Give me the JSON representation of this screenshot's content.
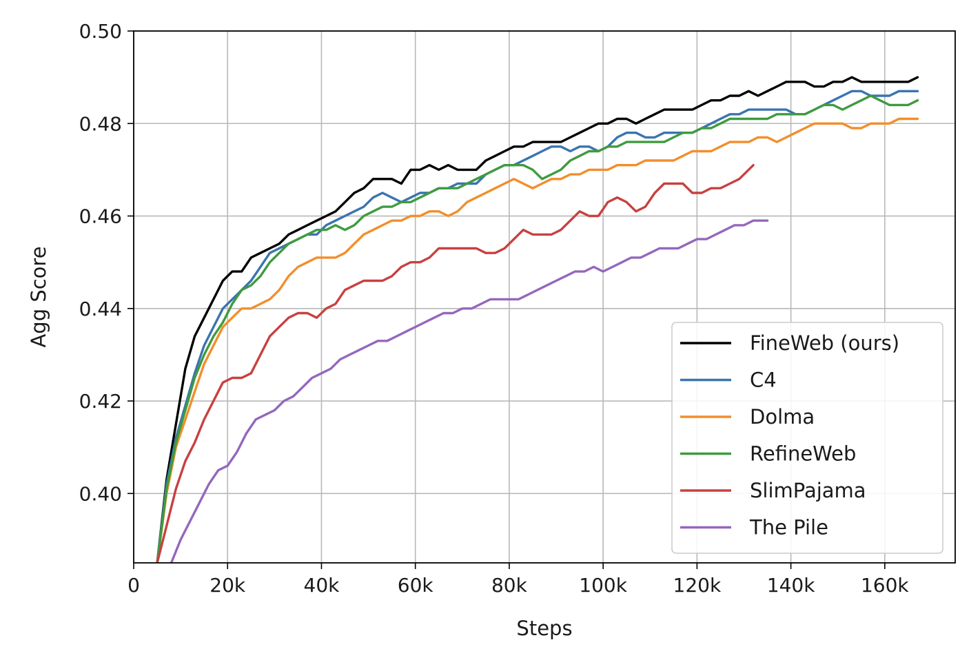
{
  "chart_data": {
    "type": "line",
    "title": "",
    "xlabel": "Steps",
    "ylabel": "Agg Score",
    "xlim": [
      0,
      175000
    ],
    "ylim": [
      0.385,
      0.5
    ],
    "xticks": [
      0,
      20000,
      40000,
      60000,
      80000,
      100000,
      120000,
      140000,
      160000
    ],
    "xtick_labels": [
      "0",
      "20k",
      "40k",
      "60k",
      "80k",
      "100k",
      "120k",
      "140k",
      "160k"
    ],
    "yticks": [
      0.4,
      0.42,
      0.44,
      0.46,
      0.48,
      0.5
    ],
    "ytick_labels": [
      "0.40",
      "0.42",
      "0.44",
      "0.46",
      "0.48",
      "0.50"
    ],
    "grid": true,
    "legend_position": "lower-right",
    "series": [
      {
        "name": "FineWeb (ours)",
        "color": "#000000",
        "x": [
          5000,
          7000,
          9000,
          11000,
          13000,
          15000,
          17000,
          19000,
          21000,
          23000,
          25000,
          27000,
          29000,
          31000,
          33000,
          35000,
          37000,
          39000,
          41000,
          43000,
          45000,
          47000,
          49000,
          51000,
          53000,
          55000,
          57000,
          59000,
          61000,
          63000,
          65000,
          67000,
          69000,
          71000,
          73000,
          75000,
          77000,
          79000,
          81000,
          83000,
          85000,
          87000,
          89000,
          91000,
          93000,
          95000,
          97000,
          99000,
          101000,
          103000,
          105000,
          107000,
          109000,
          111000,
          113000,
          115000,
          117000,
          119000,
          121000,
          123000,
          125000,
          127000,
          129000,
          131000,
          133000,
          135000,
          137000,
          139000,
          141000,
          143000,
          145000,
          147000,
          149000,
          151000,
          153000,
          155000,
          157000,
          159000,
          161000,
          163000,
          165000,
          167000
        ],
        "y": [
          0.385,
          0.403,
          0.415,
          0.427,
          0.434,
          0.438,
          0.442,
          0.446,
          0.448,
          0.448,
          0.451,
          0.452,
          0.453,
          0.454,
          0.456,
          0.457,
          0.458,
          0.459,
          0.46,
          0.461,
          0.463,
          0.465,
          0.466,
          0.468,
          0.468,
          0.468,
          0.467,
          0.47,
          0.47,
          0.471,
          0.47,
          0.471,
          0.47,
          0.47,
          0.47,
          0.472,
          0.473,
          0.474,
          0.475,
          0.475,
          0.476,
          0.476,
          0.476,
          0.476,
          0.477,
          0.478,
          0.479,
          0.48,
          0.48,
          0.481,
          0.481,
          0.48,
          0.481,
          0.482,
          0.483,
          0.483,
          0.483,
          0.483,
          0.484,
          0.485,
          0.485,
          0.486,
          0.486,
          0.487,
          0.486,
          0.487,
          0.488,
          0.489,
          0.489,
          0.489,
          0.488,
          0.488,
          0.489,
          0.489,
          0.49,
          0.489,
          0.489,
          0.489,
          0.489,
          0.489,
          0.489,
          0.49
        ]
      },
      {
        "name": "C4",
        "color": "#3a74b0",
        "x": [
          5000,
          7000,
          9000,
          11000,
          13000,
          15000,
          17000,
          19000,
          21000,
          23000,
          25000,
          27000,
          29000,
          31000,
          33000,
          35000,
          37000,
          39000,
          41000,
          43000,
          45000,
          47000,
          49000,
          51000,
          53000,
          55000,
          57000,
          59000,
          61000,
          63000,
          65000,
          67000,
          69000,
          71000,
          73000,
          75000,
          77000,
          79000,
          81000,
          83000,
          85000,
          87000,
          89000,
          91000,
          93000,
          95000,
          97000,
          99000,
          101000,
          103000,
          105000,
          107000,
          109000,
          111000,
          113000,
          115000,
          117000,
          119000,
          121000,
          123000,
          125000,
          127000,
          129000,
          131000,
          133000,
          135000,
          137000,
          139000,
          141000,
          143000,
          145000,
          147000,
          149000,
          151000,
          153000,
          155000,
          157000,
          159000,
          161000,
          163000,
          165000,
          167000
        ],
        "y": [
          0.385,
          0.402,
          0.412,
          0.419,
          0.426,
          0.432,
          0.436,
          0.44,
          0.442,
          0.444,
          0.446,
          0.449,
          0.452,
          0.453,
          0.454,
          0.455,
          0.456,
          0.456,
          0.458,
          0.459,
          0.46,
          0.461,
          0.462,
          0.464,
          0.465,
          0.464,
          0.463,
          0.464,
          0.465,
          0.465,
          0.466,
          0.466,
          0.467,
          0.467,
          0.467,
          0.469,
          0.47,
          0.471,
          0.471,
          0.472,
          0.473,
          0.474,
          0.475,
          0.475,
          0.474,
          0.475,
          0.475,
          0.474,
          0.475,
          0.477,
          0.478,
          0.478,
          0.477,
          0.477,
          0.478,
          0.478,
          0.478,
          0.478,
          0.479,
          0.48,
          0.481,
          0.482,
          0.482,
          0.483,
          0.483,
          0.483,
          0.483,
          0.483,
          0.482,
          0.482,
          0.483,
          0.484,
          0.485,
          0.486,
          0.487,
          0.487,
          0.486,
          0.486,
          0.486,
          0.487,
          0.487,
          0.487
        ]
      },
      {
        "name": "Dolma",
        "color": "#f28e2b",
        "x": [
          5000,
          7000,
          9000,
          11000,
          13000,
          15000,
          17000,
          19000,
          21000,
          23000,
          25000,
          27000,
          29000,
          31000,
          33000,
          35000,
          37000,
          39000,
          41000,
          43000,
          45000,
          47000,
          49000,
          51000,
          53000,
          55000,
          57000,
          59000,
          61000,
          63000,
          65000,
          67000,
          69000,
          71000,
          73000,
          75000,
          77000,
          79000,
          81000,
          83000,
          85000,
          87000,
          89000,
          91000,
          93000,
          95000,
          97000,
          99000,
          101000,
          103000,
          105000,
          107000,
          109000,
          111000,
          113000,
          115000,
          117000,
          119000,
          121000,
          123000,
          125000,
          127000,
          129000,
          131000,
          133000,
          135000,
          137000,
          139000,
          141000,
          143000,
          145000,
          147000,
          149000,
          151000,
          153000,
          155000,
          157000,
          159000,
          161000,
          163000,
          165000,
          167000
        ],
        "y": [
          0.385,
          0.4,
          0.41,
          0.416,
          0.422,
          0.428,
          0.432,
          0.436,
          0.438,
          0.44,
          0.44,
          0.441,
          0.442,
          0.444,
          0.447,
          0.449,
          0.45,
          0.451,
          0.451,
          0.451,
          0.452,
          0.454,
          0.456,
          0.457,
          0.458,
          0.459,
          0.459,
          0.46,
          0.46,
          0.461,
          0.461,
          0.46,
          0.461,
          0.463,
          0.464,
          0.465,
          0.466,
          0.467,
          0.468,
          0.467,
          0.466,
          0.467,
          0.468,
          0.468,
          0.469,
          0.469,
          0.47,
          0.47,
          0.47,
          0.471,
          0.471,
          0.471,
          0.472,
          0.472,
          0.472,
          0.472,
          0.473,
          0.474,
          0.474,
          0.474,
          0.475,
          0.476,
          0.476,
          0.476,
          0.477,
          0.477,
          0.476,
          0.477,
          0.478,
          0.479,
          0.48,
          0.48,
          0.48,
          0.48,
          0.479,
          0.479,
          0.48,
          0.48,
          0.48,
          0.481,
          0.481,
          0.481
        ]
      },
      {
        "name": "RefineWeb",
        "color": "#3e9b3e",
        "x": [
          5000,
          7000,
          9000,
          11000,
          13000,
          15000,
          17000,
          19000,
          21000,
          23000,
          25000,
          27000,
          29000,
          31000,
          33000,
          35000,
          37000,
          39000,
          41000,
          43000,
          45000,
          47000,
          49000,
          51000,
          53000,
          55000,
          57000,
          59000,
          61000,
          63000,
          65000,
          67000,
          69000,
          71000,
          73000,
          75000,
          77000,
          79000,
          81000,
          83000,
          85000,
          87000,
          89000,
          91000,
          93000,
          95000,
          97000,
          99000,
          101000,
          103000,
          105000,
          107000,
          109000,
          111000,
          113000,
          115000,
          117000,
          119000,
          121000,
          123000,
          125000,
          127000,
          129000,
          131000,
          133000,
          135000,
          137000,
          139000,
          141000,
          143000,
          145000,
          147000,
          149000,
          151000,
          153000,
          155000,
          157000,
          159000,
          161000,
          163000,
          165000,
          167000
        ],
        "y": [
          0.385,
          0.401,
          0.411,
          0.418,
          0.425,
          0.43,
          0.434,
          0.437,
          0.441,
          0.444,
          0.445,
          0.447,
          0.45,
          0.452,
          0.454,
          0.455,
          0.456,
          0.457,
          0.457,
          0.458,
          0.457,
          0.458,
          0.46,
          0.461,
          0.462,
          0.462,
          0.463,
          0.463,
          0.464,
          0.465,
          0.466,
          0.466,
          0.466,
          0.467,
          0.468,
          0.469,
          0.47,
          0.471,
          0.471,
          0.471,
          0.47,
          0.468,
          0.469,
          0.47,
          0.472,
          0.473,
          0.474,
          0.474,
          0.475,
          0.475,
          0.476,
          0.476,
          0.476,
          0.476,
          0.476,
          0.477,
          0.478,
          0.478,
          0.479,
          0.479,
          0.48,
          0.481,
          0.481,
          0.481,
          0.481,
          0.481,
          0.482,
          0.482,
          0.482,
          0.482,
          0.483,
          0.484,
          0.484,
          0.483,
          0.484,
          0.485,
          0.486,
          0.485,
          0.484,
          0.484,
          0.484,
          0.485
        ]
      },
      {
        "name": "SlimPajama",
        "color": "#c84040",
        "x": [
          5000,
          7000,
          9000,
          11000,
          13000,
          15000,
          17000,
          19000,
          21000,
          23000,
          25000,
          27000,
          29000,
          31000,
          33000,
          35000,
          37000,
          39000,
          41000,
          43000,
          45000,
          47000,
          49000,
          51000,
          53000,
          55000,
          57000,
          59000,
          61000,
          63000,
          65000,
          67000,
          69000,
          71000,
          73000,
          75000,
          77000,
          79000,
          81000,
          83000,
          85000,
          87000,
          89000,
          91000,
          93000,
          95000,
          97000,
          99000,
          101000,
          103000,
          105000,
          107000,
          109000,
          111000,
          113000,
          115000,
          117000,
          119000,
          121000,
          123000,
          125000,
          127000,
          129000,
          131000,
          132000
        ],
        "y": [
          0.385,
          0.393,
          0.401,
          0.407,
          0.411,
          0.416,
          0.42,
          0.424,
          0.425,
          0.425,
          0.426,
          0.43,
          0.434,
          0.436,
          0.438,
          0.439,
          0.439,
          0.438,
          0.44,
          0.441,
          0.444,
          0.445,
          0.446,
          0.446,
          0.446,
          0.447,
          0.449,
          0.45,
          0.45,
          0.451,
          0.453,
          0.453,
          0.453,
          0.453,
          0.453,
          0.452,
          0.452,
          0.453,
          0.455,
          0.457,
          0.456,
          0.456,
          0.456,
          0.457,
          0.459,
          0.461,
          0.46,
          0.46,
          0.463,
          0.464,
          0.463,
          0.461,
          0.462,
          0.465,
          0.467,
          0.467,
          0.467,
          0.465,
          0.465,
          0.466,
          0.466,
          0.467,
          0.468,
          0.47,
          0.471
        ]
      },
      {
        "name": "The Pile",
        "color": "#9467bd",
        "x": [
          8000,
          10000,
          12000,
          14000,
          16000,
          18000,
          20000,
          22000,
          24000,
          26000,
          28000,
          30000,
          32000,
          34000,
          36000,
          38000,
          40000,
          42000,
          44000,
          46000,
          48000,
          50000,
          52000,
          54000,
          56000,
          58000,
          60000,
          62000,
          64000,
          66000,
          68000,
          70000,
          72000,
          74000,
          76000,
          78000,
          80000,
          82000,
          84000,
          86000,
          88000,
          90000,
          92000,
          94000,
          96000,
          98000,
          100000,
          102000,
          104000,
          106000,
          108000,
          110000,
          112000,
          114000,
          116000,
          118000,
          120000,
          122000,
          124000,
          126000,
          128000,
          130000,
          132000,
          134000,
          135000
        ],
        "y": [
          0.385,
          0.39,
          0.394,
          0.398,
          0.402,
          0.405,
          0.406,
          0.409,
          0.413,
          0.416,
          0.417,
          0.418,
          0.42,
          0.421,
          0.423,
          0.425,
          0.426,
          0.427,
          0.429,
          0.43,
          0.431,
          0.432,
          0.433,
          0.433,
          0.434,
          0.435,
          0.436,
          0.437,
          0.438,
          0.439,
          0.439,
          0.44,
          0.44,
          0.441,
          0.442,
          0.442,
          0.442,
          0.442,
          0.443,
          0.444,
          0.445,
          0.446,
          0.447,
          0.448,
          0.448,
          0.449,
          0.448,
          0.449,
          0.45,
          0.451,
          0.451,
          0.452,
          0.453,
          0.453,
          0.453,
          0.454,
          0.455,
          0.455,
          0.456,
          0.457,
          0.458,
          0.458,
          0.459,
          0.459,
          0.459
        ]
      }
    ]
  }
}
